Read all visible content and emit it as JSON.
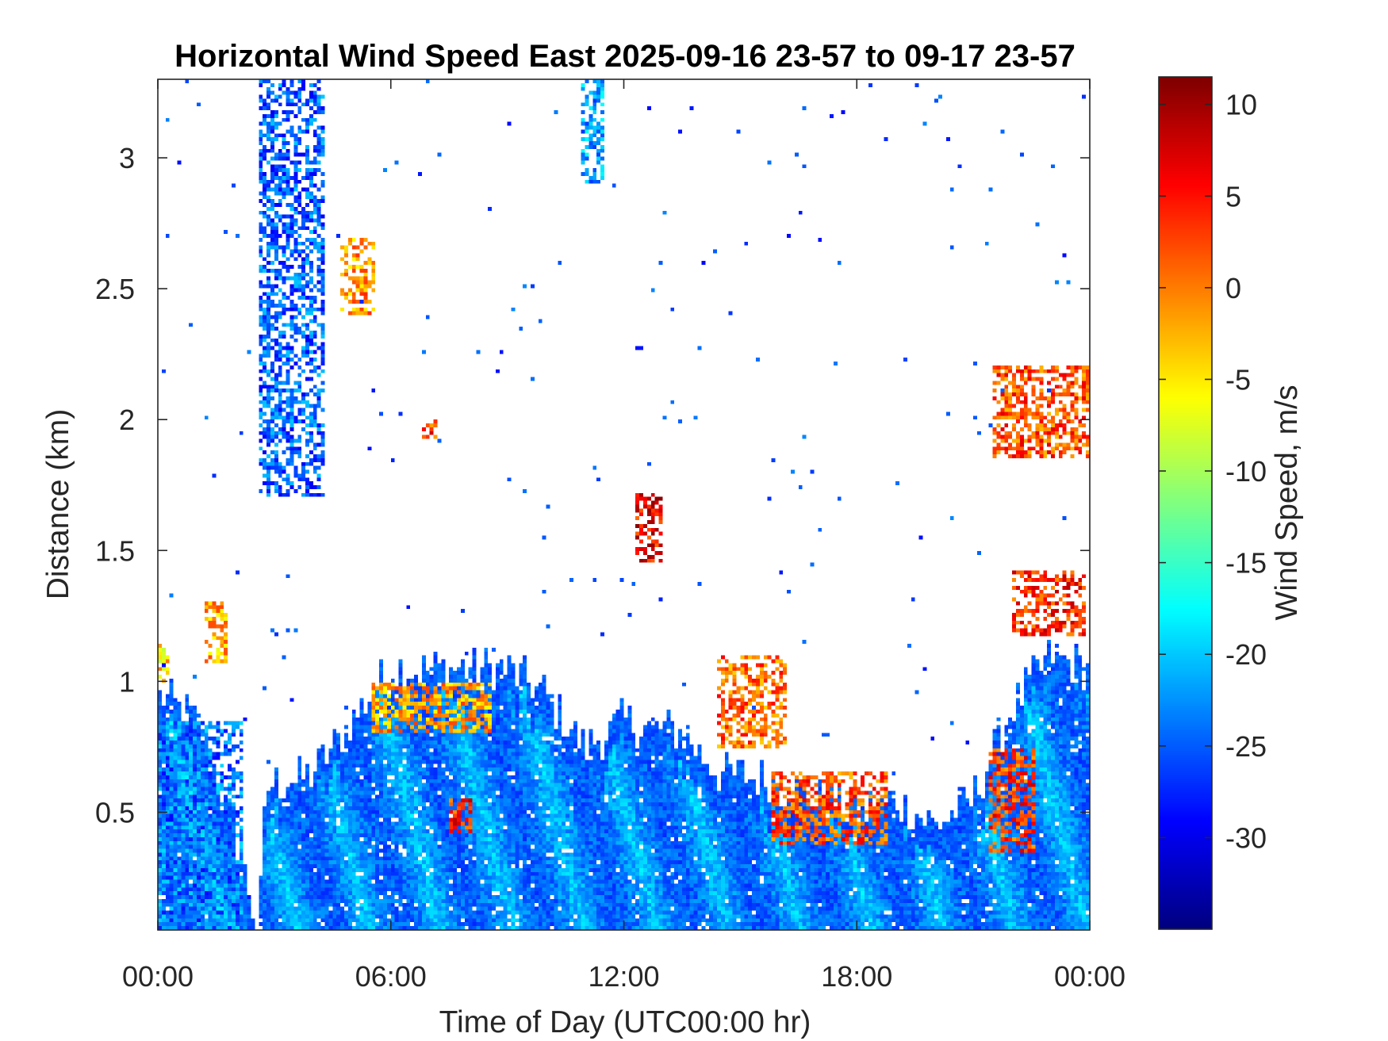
{
  "chart_data": {
    "type": "heatmap",
    "title": "Horizontal Wind Speed East 2025-09-16 23-57 to 09-17 23-57",
    "xlabel": "Time of Day (UTC00:00 hr)",
    "ylabel": "Distance (km)",
    "colorbar_label": "Wind Speed, m/s",
    "colormap": "jet",
    "x_range_hours": [
      0,
      24
    ],
    "y_range_km": [
      0.05,
      3.3
    ],
    "color_range": [
      -35,
      11.5
    ],
    "x_ticks": [
      {
        "value": 0,
        "label": "00:00"
      },
      {
        "value": 6,
        "label": "06:00"
      },
      {
        "value": 12,
        "label": "12:00"
      },
      {
        "value": 18,
        "label": "18:00"
      },
      {
        "value": 24,
        "label": "00:00"
      }
    ],
    "y_ticks": [
      {
        "value": 0.5,
        "label": "0.5"
      },
      {
        "value": 1,
        "label": "1"
      },
      {
        "value": 1.5,
        "label": "1.5"
      },
      {
        "value": 2,
        "label": "2"
      },
      {
        "value": 2.5,
        "label": "2.5"
      },
      {
        "value": 3,
        "label": "3"
      }
    ],
    "colorbar_ticks": [
      {
        "value": 10,
        "label": "10"
      },
      {
        "value": 5,
        "label": "5"
      },
      {
        "value": 0,
        "label": "0"
      },
      {
        "value": -5,
        "label": "-5"
      },
      {
        "value": -10,
        "label": "-10"
      },
      {
        "value": -15,
        "label": "-15"
      },
      {
        "value": -20,
        "label": "-20"
      },
      {
        "value": -25,
        "label": "-25"
      },
      {
        "value": -30,
        "label": "-30"
      }
    ],
    "boundary_layer_top_km": [
      [
        0,
        0.95
      ],
      [
        1,
        0.85
      ],
      [
        2,
        0.4
      ],
      [
        2.6,
        0.05
      ],
      [
        2.8,
        0.6
      ],
      [
        4,
        0.65
      ],
      [
        5,
        0.85
      ],
      [
        6,
        1.05
      ],
      [
        8,
        1.05
      ],
      [
        9,
        1.05
      ],
      [
        10,
        0.95
      ],
      [
        11,
        0.75
      ],
      [
        12,
        0.85
      ],
      [
        13.5,
        0.8
      ],
      [
        14.5,
        0.65
      ],
      [
        16,
        0.62
      ],
      [
        18,
        0.5
      ],
      [
        19,
        0.55
      ],
      [
        20,
        0.45
      ],
      [
        21,
        0.55
      ],
      [
        22,
        0.9
      ],
      [
        23,
        1.1
      ],
      [
        24,
        1.05
      ]
    ],
    "features": [
      {
        "x": [
          15.8,
          18.8
        ],
        "y": [
          0.38,
          0.65
        ],
        "value": 2
      },
      {
        "x": [
          21.4,
          22.6
        ],
        "y": [
          0.35,
          0.75
        ],
        "value": 3
      },
      {
        "x": [
          5.5,
          8.6
        ],
        "y": [
          0.8,
          1.0
        ],
        "value": -2
      },
      {
        "x": [
          7.5,
          8.1
        ],
        "y": [
          0.42,
          0.55
        ],
        "value": 4
      },
      {
        "x": [
          14.4,
          16.2
        ],
        "y": [
          0.75,
          1.1
        ],
        "value": 1
      },
      {
        "x": [
          12.3,
          13.0
        ],
        "y": [
          1.45,
          1.72
        ],
        "value": 6
      },
      {
        "x": [
          4.7,
          5.6
        ],
        "y": [
          2.4,
          2.7
        ],
        "value": -1
      },
      {
        "x": [
          22.0,
          23.9
        ],
        "y": [
          1.18,
          1.42
        ],
        "value": 4
      },
      {
        "x": [
          21.5,
          24.0
        ],
        "y": [
          1.85,
          2.2
        ],
        "value": 2
      },
      {
        "x": [
          2.6,
          4.3
        ],
        "y": [
          1.7,
          3.3
        ],
        "value": -25
      },
      {
        "x": [
          10.9,
          11.5
        ],
        "y": [
          2.9,
          3.3
        ],
        "value": -22
      },
      {
        "x": [
          1.2,
          1.8
        ],
        "y": [
          1.05,
          1.3
        ],
        "value": -2
      },
      {
        "x": [
          6.8,
          7.2
        ],
        "y": [
          1.92,
          2.02
        ],
        "value": 3
      },
      {
        "x": [
          0.0,
          0.3
        ],
        "y": [
          1.0,
          1.15
        ],
        "value": -4
      },
      {
        "x": [
          0.0,
          2.2
        ],
        "y": [
          0.05,
          0.85
        ],
        "value": -24
      }
    ]
  }
}
